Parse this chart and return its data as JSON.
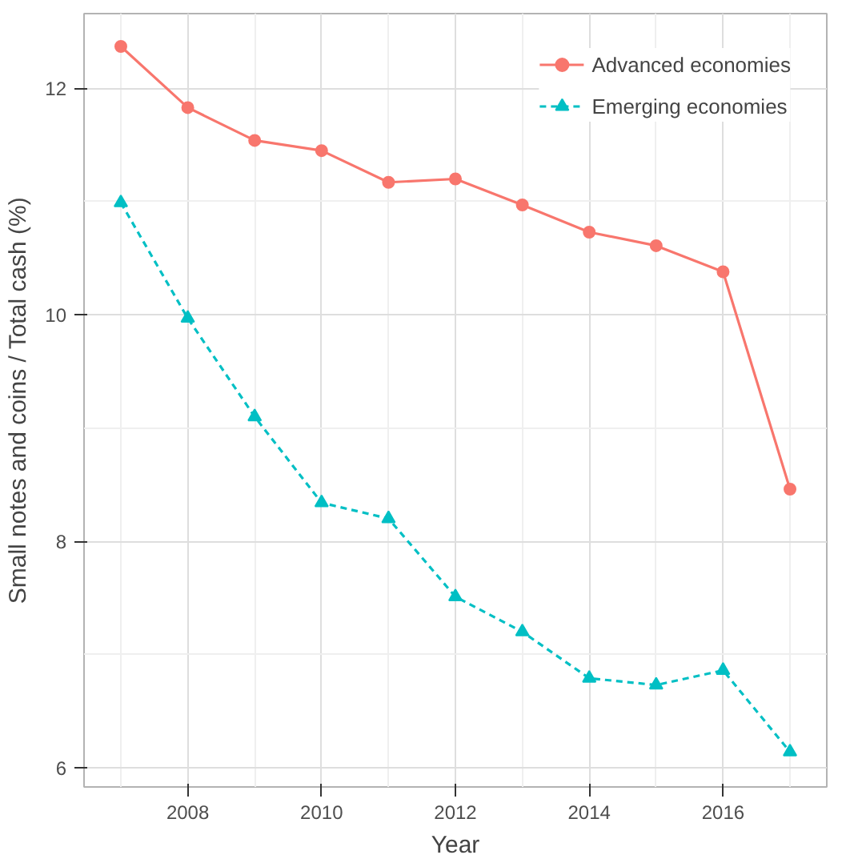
{
  "chart_data": {
    "type": "line",
    "xlabel": "Year",
    "ylabel": "Small notes and coins / Total cash (%)",
    "x": [
      2007,
      2008,
      2009,
      2010,
      2011,
      2012,
      2013,
      2014,
      2015,
      2016,
      2017
    ],
    "series": [
      {
        "name": "Advanced economies",
        "color": "#f8766d",
        "marker": "circle",
        "line_style": "solid",
        "values": [
          12.37,
          11.83,
          11.54,
          11.45,
          11.17,
          11.2,
          10.97,
          10.73,
          10.61,
          10.38,
          8.46
        ]
      },
      {
        "name": "Emerging economies",
        "color": "#00bfc4",
        "marker": "triangle",
        "line_style": "dashed",
        "values": [
          10.99,
          9.97,
          9.1,
          8.34,
          8.2,
          7.51,
          7.2,
          6.79,
          6.73,
          6.86,
          6.14
        ]
      }
    ],
    "xlim": [
      2006.45,
      2017.55
    ],
    "ylim": [
      5.83,
      12.66
    ],
    "xticks": [
      2008,
      2010,
      2012,
      2014,
      2016
    ],
    "yticks": [
      6,
      8,
      10,
      12
    ],
    "grid": true,
    "legend": "top right"
  }
}
